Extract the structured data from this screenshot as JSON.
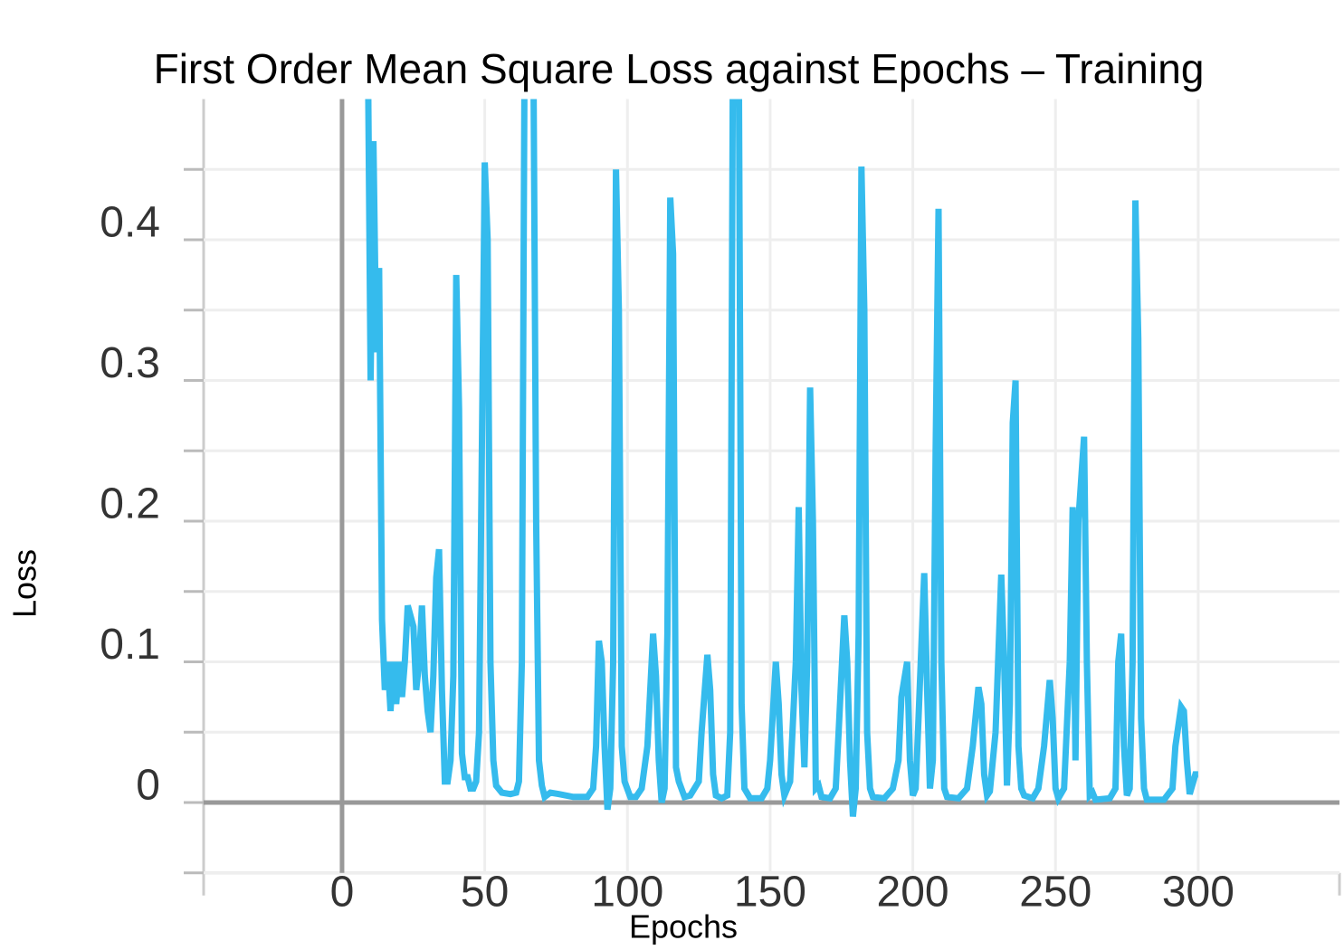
{
  "chart_data": {
    "type": "line",
    "title": "First Order Mean Square Loss against Epochs – Training",
    "xlabel": "Epochs",
    "ylabel": "Loss",
    "xlim": [
      -48.5,
      349.5
    ],
    "ylim": [
      -0.05,
      0.5
    ],
    "xticks": [
      0,
      50,
      100,
      150,
      200,
      250,
      300
    ],
    "yticks": [
      0,
      0.1,
      0.2,
      0.3,
      0.4
    ],
    "yminor_ticks": [
      -0.05,
      0.05,
      0.15,
      0.25,
      0.35,
      0.45
    ],
    "grid": true,
    "zero_lines": true,
    "color": "#35bbed",
    "x": [
      9,
      10,
      11,
      12,
      13,
      14,
      15,
      16,
      17,
      18,
      19,
      20,
      21,
      22,
      23,
      25,
      26,
      27,
      28,
      29,
      30,
      31,
      32,
      33,
      34,
      35,
      36,
      37,
      38,
      39,
      40,
      41,
      42,
      43,
      44,
      45,
      46,
      47,
      48,
      50,
      51,
      52,
      53,
      54,
      56,
      59,
      61,
      62,
      63,
      64,
      66,
      67,
      68,
      69,
      70,
      71,
      73,
      76,
      81,
      86,
      88,
      89,
      90,
      91,
      92,
      93,
      94,
      95,
      96,
      97,
      98,
      99,
      101,
      103,
      105,
      107,
      109,
      110,
      111,
      112,
      113,
      114,
      115,
      116,
      117,
      118,
      120,
      122,
      125,
      126,
      128,
      129,
      130,
      131,
      133,
      135,
      136,
      137,
      139,
      140,
      141,
      143,
      147,
      149,
      150,
      152,
      153,
      154,
      155,
      157,
      159,
      160,
      161,
      162,
      163,
      164,
      165,
      166,
      167,
      168,
      171,
      173,
      174,
      176,
      177,
      178,
      179,
      180,
      181,
      182,
      183,
      184,
      185,
      186,
      190,
      193,
      195,
      196,
      198,
      199,
      200,
      201,
      202,
      204,
      205,
      206,
      207,
      208,
      209,
      210,
      211,
      212,
      216,
      219,
      221,
      223,
      224,
      225,
      226,
      227,
      229,
      231,
      232,
      233,
      234,
      235,
      236,
      237,
      238,
      239,
      242,
      244,
      246,
      248,
      249,
      250,
      251,
      253,
      255,
      256,
      257,
      258,
      260,
      261,
      262,
      263,
      264,
      269,
      271,
      272,
      273,
      274,
      275,
      276,
      277,
      278,
      279,
      280,
      281,
      282,
      288,
      291,
      292,
      294,
      295,
      296,
      297,
      299,
      300
    ],
    "values": [
      0.55,
      0.3,
      0.47,
      0.32,
      0.38,
      0.13,
      0.08,
      0.1,
      0.065,
      0.1,
      0.07,
      0.1,
      0.075,
      0.1,
      0.14,
      0.125,
      0.08,
      0.1,
      0.14,
      0.09,
      0.065,
      0.05,
      0.09,
      0.16,
      0.18,
      0.08,
      0.015,
      0.015,
      0.03,
      0.09,
      0.375,
      0.28,
      0.035,
      0.018,
      0.018,
      0.01,
      0.01,
      0.015,
      0.05,
      0.455,
      0.4,
      0.1,
      0.03,
      0.012,
      0.007,
      0.006,
      0.007,
      0.015,
      0.1,
      0.55,
      0.55,
      0.55,
      0.2,
      0.03,
      0.012,
      0.004,
      0.007,
      0.006,
      0.004,
      0.004,
      0.01,
      0.04,
      0.115,
      0.1,
      0.04,
      -0.005,
      0.01,
      0.1,
      0.45,
      0.35,
      0.04,
      0.015,
      0.004,
      0.004,
      0.01,
      0.04,
      0.12,
      0.09,
      0.03,
      0.0,
      0.01,
      0.12,
      0.43,
      0.39,
      0.025,
      0.015,
      0.004,
      0.005,
      0.015,
      0.05,
      0.105,
      0.08,
      0.02,
      0.005,
      0.003,
      0.005,
      0.05,
      0.55,
      0.55,
      0.07,
      0.01,
      0.003,
      0.003,
      0.01,
      0.03,
      0.1,
      0.07,
      0.02,
      0.005,
      0.015,
      0.1,
      0.21,
      0.08,
      0.025,
      0.1,
      0.295,
      0.2,
      0.01,
      0.012,
      0.004,
      0.003,
      0.01,
      0.05,
      0.133,
      0.1,
      0.03,
      -0.01,
      0.01,
      0.12,
      0.452,
      0.35,
      0.05,
      0.01,
      0.004,
      0.003,
      0.01,
      0.03,
      0.075,
      0.1,
      0.03,
      0.005,
      0.01,
      0.06,
      0.163,
      0.08,
      0.01,
      0.03,
      0.25,
      0.422,
      0.1,
      0.01,
      0.004,
      0.003,
      0.01,
      0.04,
      0.082,
      0.07,
      0.02,
      0.005,
      0.008,
      0.05,
      0.162,
      0.1,
      0.012,
      0.07,
      0.27,
      0.3,
      0.04,
      0.01,
      0.005,
      0.003,
      0.01,
      0.04,
      0.087,
      0.06,
      0.01,
      0.003,
      0.01,
      0.1,
      0.21,
      0.03,
      0.2,
      0.26,
      0.1,
      0.005,
      0.007,
      0.002,
      0.003,
      0.01,
      0.1,
      0.12,
      0.04,
      0.005,
      0.01,
      0.1,
      0.428,
      0.33,
      0.06,
      0.01,
      0.002,
      0.002,
      0.01,
      0.04,
      0.068,
      0.065,
      0.03,
      0.006,
      0.02,
      0.02
    ]
  }
}
